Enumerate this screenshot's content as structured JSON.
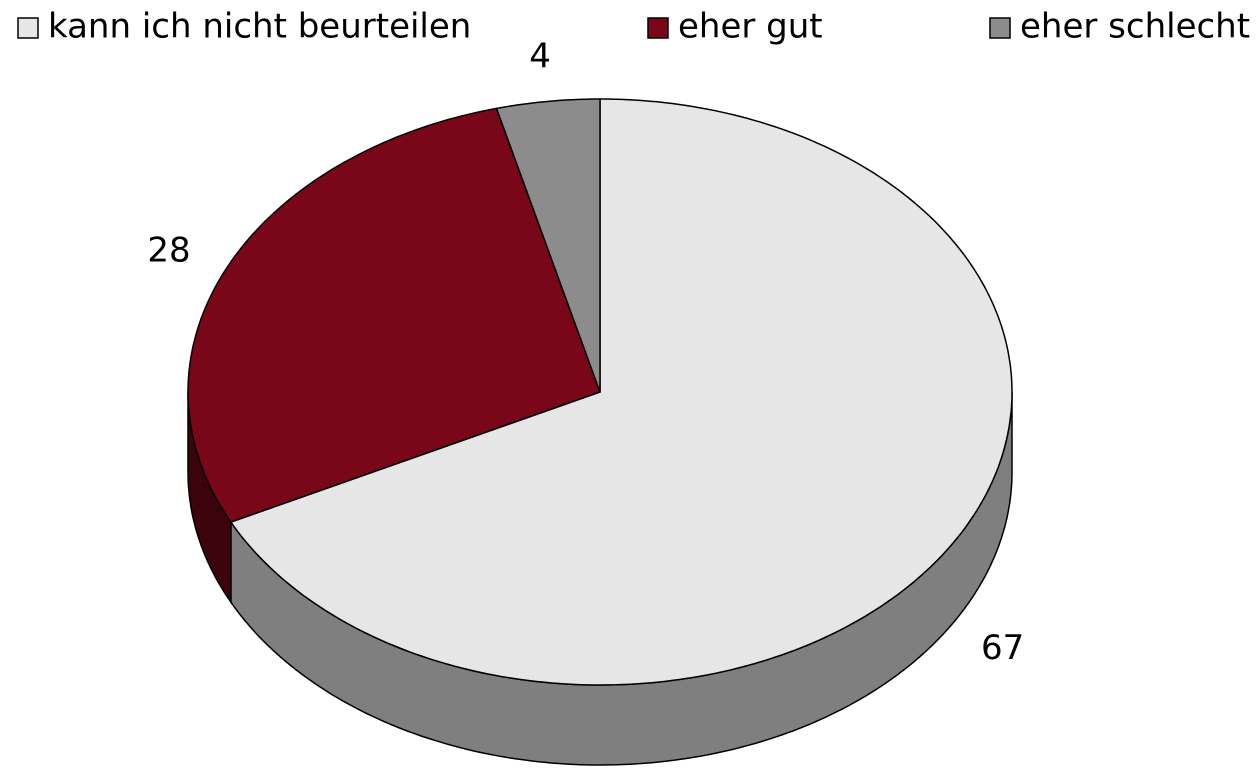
{
  "chart_data": {
    "type": "pie",
    "categories": [
      "kann ich nicht beurteilen",
      "eher gut",
      "eher schlecht"
    ],
    "values": [
      67,
      28,
      4
    ],
    "colors": [
      "#e6e6e6",
      "#7a0619",
      "#8c8c8c"
    ]
  }
}
